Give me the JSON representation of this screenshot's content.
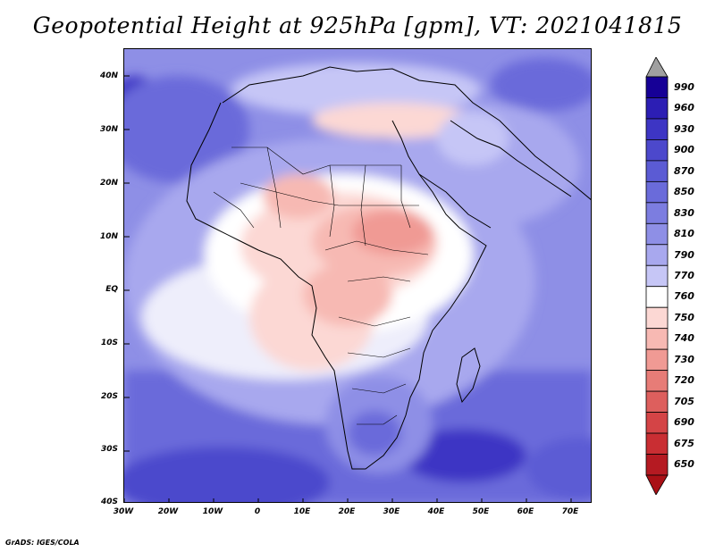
{
  "title": "Geopotential Height at 925hPa [gpm], VT: 2021041815",
  "credit": "GrADS: IGES/COLA",
  "lat_labels": [
    "40N",
    "30N",
    "20N",
    "10N",
    "EQ",
    "10S",
    "20S",
    "30S",
    "40S"
  ],
  "lon_labels": [
    "30W",
    "20W",
    "10W",
    "0",
    "10E",
    "20E",
    "30E",
    "40E",
    "50E",
    "60E",
    "70E"
  ],
  "colorbar": {
    "levels": [
      "990",
      "960",
      "930",
      "900",
      "870",
      "850",
      "830",
      "810",
      "790",
      "770",
      "760",
      "750",
      "740",
      "730",
      "720",
      "705",
      "690",
      "675",
      "650"
    ],
    "colors": [
      "#160096",
      "#2c1eb4",
      "#3d35c4",
      "#4c48cc",
      "#5b5bd4",
      "#6a6bda",
      "#7c7de0",
      "#8e8fe6",
      "#a8a8ee",
      "#c6c6f6",
      "#ffffff",
      "#fcd8d4",
      "#f7b9b3",
      "#f09a94",
      "#e77c77",
      "#dd5f5d",
      "#d44446",
      "#c92e33",
      "#b51a22"
    ],
    "over_color": "#a0a0a0",
    "under_color": "#aa1016"
  }
}
